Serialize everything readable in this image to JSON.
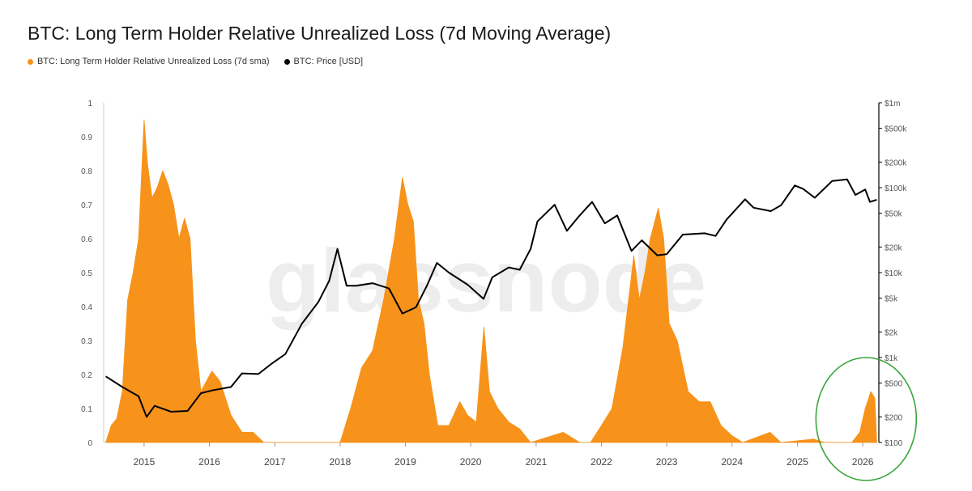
{
  "title": "BTC: Long Term Holder Relative Unrealized Loss (7d Moving Average)",
  "watermark": "glassnode",
  "colors": {
    "loss": "#f7931a",
    "price": "#000000",
    "circle": "#3aa53a"
  },
  "legend": [
    {
      "label": "BTC: Long Term Holder Relative Unrealized Loss (7d sma)",
      "color": "#f7931a"
    },
    {
      "label": "BTC: Price [USD]",
      "color": "#000000"
    }
  ],
  "chart_data": {
    "type": "area",
    "x_ticks": [
      "2015",
      "2016",
      "2017",
      "2018",
      "2019",
      "2020",
      "2021",
      "2022",
      "2023",
      "2024",
      "2025",
      "2026"
    ],
    "y_left_ticks": [
      "0",
      "0.1",
      "0.2",
      "0.3",
      "0.4",
      "0.5",
      "0.6",
      "0.7",
      "0.8",
      "0.9",
      "1"
    ],
    "y_left_range": [
      0,
      1
    ],
    "y_right_ticks": [
      "$100",
      "$200",
      "$500",
      "$1k",
      "$2k",
      "$5k",
      "$10k",
      "$20k",
      "$50k",
      "$100k",
      "$200k",
      "$500k",
      "$1m"
    ],
    "y_right_scale": "log",
    "y_right_range": [
      100,
      1000000
    ],
    "grid": false,
    "annotation": "green circle highlighting 2026 values",
    "series": [
      {
        "name": "BTC: Long Term Holder Relative Unrealized Loss (7d sma)",
        "type": "area",
        "points": [
          [
            "2014-06-01",
            0.0
          ],
          [
            "2014-07-01",
            0.05
          ],
          [
            "2014-08-01",
            0.07
          ],
          [
            "2014-09-01",
            0.15
          ],
          [
            "2014-10-01",
            0.42
          ],
          [
            "2014-11-01",
            0.5
          ],
          [
            "2014-12-01",
            0.6
          ],
          [
            "2015-01-01",
            0.95
          ],
          [
            "2015-01-20",
            0.82
          ],
          [
            "2015-02-15",
            0.72
          ],
          [
            "2015-03-15",
            0.75
          ],
          [
            "2015-04-15",
            0.8
          ],
          [
            "2015-05-15",
            0.76
          ],
          [
            "2015-06-15",
            0.7
          ],
          [
            "2015-07-15",
            0.6
          ],
          [
            "2015-08-15",
            0.66
          ],
          [
            "2015-09-15",
            0.6
          ],
          [
            "2015-10-15",
            0.3
          ],
          [
            "2015-11-15",
            0.15
          ],
          [
            "2015-12-15",
            0.18
          ],
          [
            "2016-01-15",
            0.21
          ],
          [
            "2016-03-01",
            0.18
          ],
          [
            "2016-05-01",
            0.08
          ],
          [
            "2016-07-01",
            0.03
          ],
          [
            "2016-09-01",
            0.03
          ],
          [
            "2016-11-01",
            0.0
          ],
          [
            "2017-01-01",
            0.0
          ],
          [
            "2018-01-01",
            0.0
          ],
          [
            "2018-03-01",
            0.1
          ],
          [
            "2018-05-01",
            0.22
          ],
          [
            "2018-07-01",
            0.27
          ],
          [
            "2018-09-01",
            0.42
          ],
          [
            "2018-11-01",
            0.6
          ],
          [
            "2018-12-15",
            0.78
          ],
          [
            "2019-01-15",
            0.7
          ],
          [
            "2019-02-15",
            0.65
          ],
          [
            "2019-03-15",
            0.42
          ],
          [
            "2019-04-15",
            0.35
          ],
          [
            "2019-05-15",
            0.2
          ],
          [
            "2019-07-01",
            0.05
          ],
          [
            "2019-09-01",
            0.05
          ],
          [
            "2019-11-01",
            0.12
          ],
          [
            "2019-12-15",
            0.08
          ],
          [
            "2020-02-01",
            0.06
          ],
          [
            "2020-03-15",
            0.34
          ],
          [
            "2020-04-15",
            0.15
          ],
          [
            "2020-06-01",
            0.1
          ],
          [
            "2020-08-01",
            0.06
          ],
          [
            "2020-10-01",
            0.04
          ],
          [
            "2020-12-01",
            0.0
          ],
          [
            "2021-06-01",
            0.03
          ],
          [
            "2021-09-01",
            0.0
          ],
          [
            "2021-11-01",
            0.0
          ],
          [
            "2022-01-01",
            0.05
          ],
          [
            "2022-03-01",
            0.1
          ],
          [
            "2022-05-01",
            0.28
          ],
          [
            "2022-07-01",
            0.55
          ],
          [
            "2022-08-01",
            0.42
          ],
          [
            "2022-09-01",
            0.5
          ],
          [
            "2022-10-01",
            0.6
          ],
          [
            "2022-11-15",
            0.69
          ],
          [
            "2022-12-15",
            0.6
          ],
          [
            "2023-01-15",
            0.35
          ],
          [
            "2023-03-01",
            0.3
          ],
          [
            "2023-05-01",
            0.15
          ],
          [
            "2023-07-01",
            0.12
          ],
          [
            "2023-09-01",
            0.12
          ],
          [
            "2023-11-01",
            0.05
          ],
          [
            "2024-01-01",
            0.02
          ],
          [
            "2024-03-01",
            0.0
          ],
          [
            "2024-08-01",
            0.03
          ],
          [
            "2024-10-01",
            0.0
          ],
          [
            "2025-04-01",
            0.01
          ],
          [
            "2025-06-01",
            0.0
          ],
          [
            "2025-11-01",
            0.0
          ],
          [
            "2025-12-15",
            0.03
          ],
          [
            "2026-01-15",
            0.1
          ],
          [
            "2026-02-15",
            0.15
          ],
          [
            "2026-03-10",
            0.13
          ],
          [
            "2026-03-20",
            0.0
          ]
        ]
      },
      {
        "name": "BTC: Price [USD]",
        "type": "line",
        "axis": "right",
        "points": [
          [
            "2014-06-01",
            600
          ],
          [
            "2014-09-01",
            450
          ],
          [
            "2014-12-01",
            350
          ],
          [
            "2015-01-15",
            200
          ],
          [
            "2015-03-01",
            270
          ],
          [
            "2015-06-01",
            230
          ],
          [
            "2015-09-01",
            235
          ],
          [
            "2015-11-15",
            380
          ],
          [
            "2016-01-15",
            410
          ],
          [
            "2016-05-01",
            450
          ],
          [
            "2016-07-01",
            650
          ],
          [
            "2016-10-01",
            640
          ],
          [
            "2016-12-15",
            850
          ],
          [
            "2017-03-01",
            1100
          ],
          [
            "2017-06-01",
            2500
          ],
          [
            "2017-09-01",
            4500
          ],
          [
            "2017-11-01",
            8000
          ],
          [
            "2017-12-17",
            19000
          ],
          [
            "2018-02-06",
            7000
          ],
          [
            "2018-04-01",
            7000
          ],
          [
            "2018-07-01",
            7500
          ],
          [
            "2018-10-01",
            6500
          ],
          [
            "2018-12-15",
            3300
          ],
          [
            "2019-03-01",
            3900
          ],
          [
            "2019-05-01",
            7000
          ],
          [
            "2019-06-26",
            13000
          ],
          [
            "2019-09-01",
            10000
          ],
          [
            "2019-12-15",
            7200
          ],
          [
            "2020-03-13",
            4900
          ],
          [
            "2020-05-01",
            8800
          ],
          [
            "2020-08-01",
            11500
          ],
          [
            "2020-10-01",
            10800
          ],
          [
            "2020-12-01",
            19000
          ],
          [
            "2021-01-08",
            40000
          ],
          [
            "2021-04-14",
            63000
          ],
          [
            "2021-06-22",
            31000
          ],
          [
            "2021-09-01",
            47000
          ],
          [
            "2021-11-10",
            68000
          ],
          [
            "2022-01-20",
            38000
          ],
          [
            "2022-03-30",
            47000
          ],
          [
            "2022-06-18",
            18000
          ],
          [
            "2022-08-15",
            24000
          ],
          [
            "2022-11-09",
            16000
          ],
          [
            "2023-01-01",
            16500
          ],
          [
            "2023-04-01",
            28000
          ],
          [
            "2023-08-01",
            29000
          ],
          [
            "2023-10-01",
            27000
          ],
          [
            "2023-12-01",
            42000
          ],
          [
            "2024-03-14",
            73000
          ],
          [
            "2024-05-01",
            58000
          ],
          [
            "2024-08-05",
            53000
          ],
          [
            "2024-10-01",
            62000
          ],
          [
            "2024-12-17",
            106000
          ],
          [
            "2025-02-01",
            97000
          ],
          [
            "2025-04-08",
            76000
          ],
          [
            "2025-07-14",
            120000
          ],
          [
            "2025-10-06",
            125000
          ],
          [
            "2025-11-21",
            82000
          ],
          [
            "2026-01-15",
            95000
          ],
          [
            "2026-02-10",
            68000
          ],
          [
            "2026-03-20",
            72000
          ]
        ]
      }
    ]
  }
}
